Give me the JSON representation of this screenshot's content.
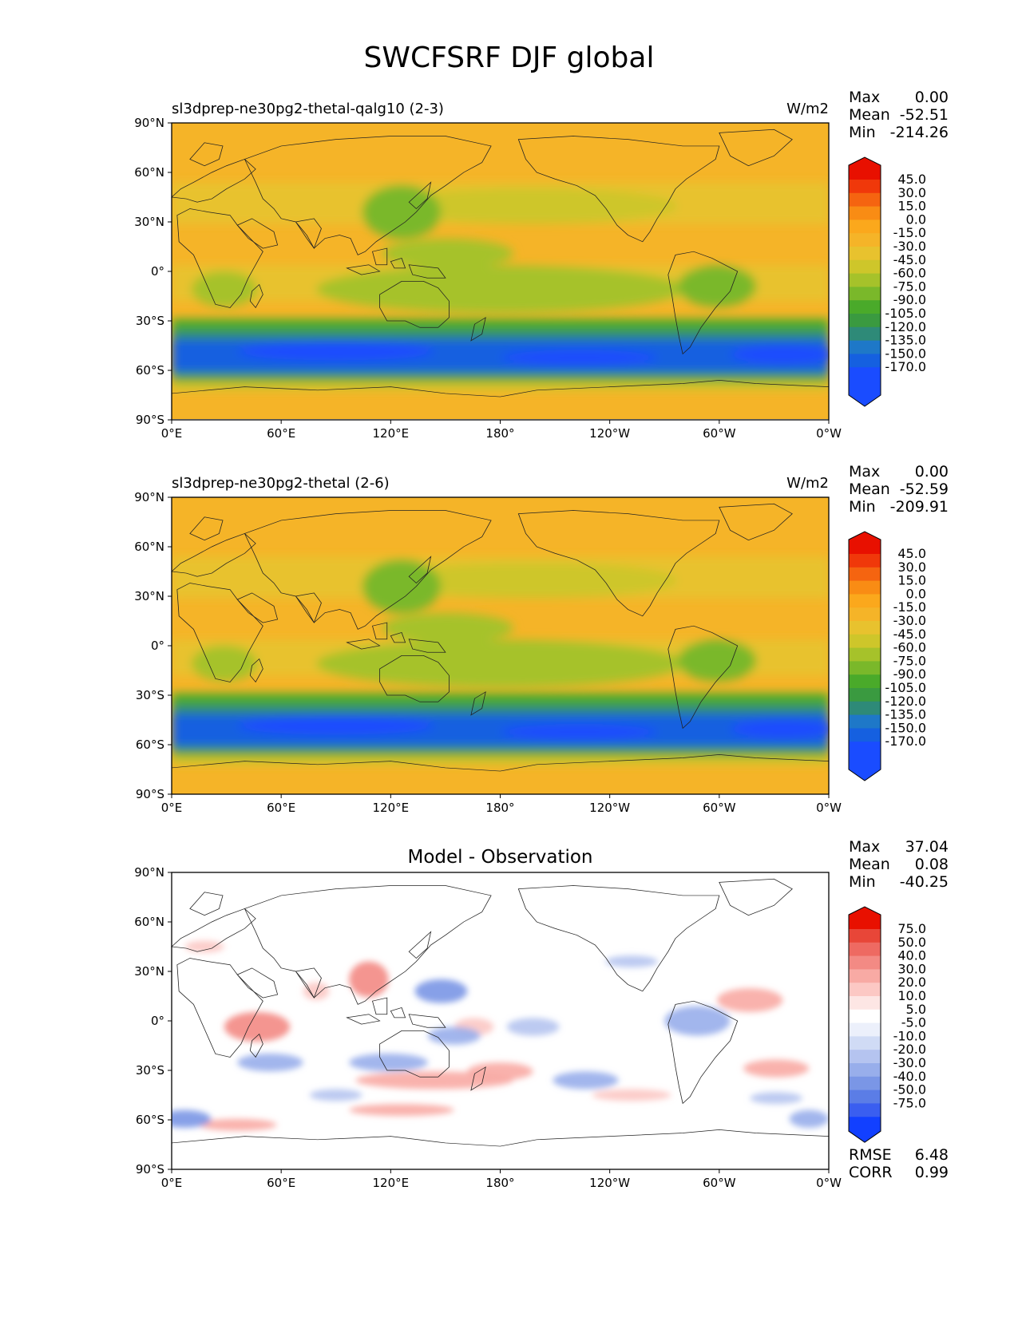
{
  "title": "SWCFSRF DJF global",
  "lon_ticks": [
    "0°E",
    "60°E",
    "120°E",
    "180°",
    "120°W",
    "60°W",
    "0°W"
  ],
  "lat_ticks": [
    "90°N",
    "60°N",
    "30°N",
    "0°",
    "30°S",
    "60°S",
    "90°S"
  ],
  "colors": {
    "test_ref_palette": [
      "#1a4cff",
      "#1560e0",
      "#1e78c8",
      "#2e8a78",
      "#3a9a40",
      "#4aaa2a",
      "#7ab82a",
      "#a6c22a",
      "#cec62a",
      "#e8c22e",
      "#f5b428",
      "#fba81c",
      "#f98c14",
      "#f56410",
      "#f0380a",
      "#e81000"
    ],
    "diff_palette": [
      "#1240ff",
      "#3a5ef0",
      "#5b7de6",
      "#7a96e6",
      "#98aeeb",
      "#b5c4f0",
      "#d0dbf5",
      "#ecf0fb",
      "#ffffff",
      "#fde6e4",
      "#fcc8c4",
      "#f8aaa4",
      "#f38a84",
      "#ee6a62",
      "#e84638",
      "#e81000"
    ]
  },
  "panels": [
    {
      "id": "test",
      "subtitle": "sl3dprep-ne30pg2-thetal-qalg10 (2-3)",
      "units": "W/m2",
      "center_title": "",
      "stats": [
        {
          "label": "Max",
          "value": "0.00"
        },
        {
          "label": "Mean",
          "value": "-52.51"
        },
        {
          "label": "Min",
          "value": "-214.26"
        }
      ],
      "colorbar_labels": [
        "45.0",
        "30.0",
        "15.0",
        "0.0",
        "-15.0",
        "-30.0",
        "-45.0",
        "-60.0",
        "-75.0",
        "-90.0",
        "-105.0",
        "-120.0",
        "-135.0",
        "-150.0",
        "-170.0"
      ],
      "footer_stats": []
    },
    {
      "id": "reference",
      "subtitle": "sl3dprep-ne30pg2-thetal (2-6)",
      "units": "W/m2",
      "center_title": "",
      "stats": [
        {
          "label": "Max",
          "value": "0.00"
        },
        {
          "label": "Mean",
          "value": "-52.59"
        },
        {
          "label": "Min",
          "value": "-209.91"
        }
      ],
      "colorbar_labels": [
        "45.0",
        "30.0",
        "15.0",
        "0.0",
        "-15.0",
        "-30.0",
        "-45.0",
        "-60.0",
        "-75.0",
        "-90.0",
        "-105.0",
        "-120.0",
        "-135.0",
        "-150.0",
        "-170.0"
      ],
      "footer_stats": []
    },
    {
      "id": "difference",
      "subtitle": "",
      "units": "",
      "center_title": "Model - Observation",
      "stats": [
        {
          "label": "Max",
          "value": "37.04"
        },
        {
          "label": "Mean",
          "value": "0.08"
        },
        {
          "label": "Min",
          "value": "-40.25"
        }
      ],
      "colorbar_labels": [
        "75.0",
        "50.0",
        "40.0",
        "30.0",
        "20.0",
        "10.0",
        "5.0",
        "-5.0",
        "-10.0",
        "-20.0",
        "-30.0",
        "-40.0",
        "-50.0",
        "-75.0"
      ],
      "footer_stats": [
        {
          "label": "RMSE",
          "value": "6.48"
        },
        {
          "label": "CORR",
          "value": "0.99"
        }
      ]
    }
  ]
}
